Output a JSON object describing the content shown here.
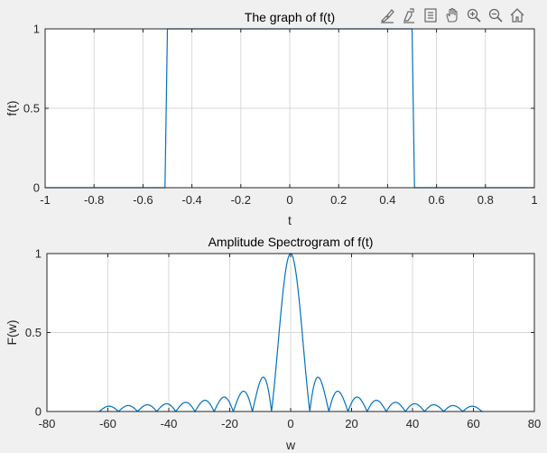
{
  "toolbar": {
    "icons": [
      "brush-icon",
      "data-tips-icon",
      "legend-icon",
      "pan-icon",
      "zoom-in-icon",
      "zoom-out-icon",
      "home-icon"
    ]
  },
  "colors": {
    "line": "#0072bd",
    "grid": "#d9d9d9",
    "axes_bg": "#ffffff",
    "figure_bg": "#f0f0f0"
  },
  "chart_data": [
    {
      "type": "line",
      "title": "The graph of f(t)",
      "xlabel": "t",
      "ylabel": "f(t)",
      "xlim": [
        -1,
        1
      ],
      "ylim": [
        0,
        1
      ],
      "grid": true,
      "x_ticks": [
        -1,
        -0.8,
        -0.6,
        -0.4,
        -0.2,
        0,
        0.2,
        0.4,
        0.6,
        0.8,
        1
      ],
      "x_tick_labels": [
        "-1",
        "-0.8",
        "-0.6",
        "-0.4",
        "-0.2",
        "0",
        "0.2",
        "0.4",
        "0.6",
        "0.8",
        "1"
      ],
      "y_ticks": [
        0,
        0.5,
        1
      ],
      "y_tick_labels": [
        "0",
        "0.5",
        "1"
      ],
      "series": [
        {
          "x": [
            -1,
            -0.51,
            -0.5,
            0.5,
            0.51,
            1
          ],
          "y": [
            0,
            0,
            1,
            1,
            0,
            0
          ]
        }
      ]
    },
    {
      "type": "line",
      "title": "Amplitude Spectrogram of f(t)",
      "xlabel": "w",
      "ylabel": "F(w)",
      "xlim": [
        -80,
        80
      ],
      "ylim": [
        0,
        1
      ],
      "grid": true,
      "x_ticks": [
        -80,
        -60,
        -40,
        -20,
        0,
        20,
        40,
        60,
        80
      ],
      "x_tick_labels": [
        "-80",
        "-60",
        "-40",
        "-20",
        "0",
        "20",
        "40",
        "60",
        "80"
      ],
      "y_ticks": [
        0,
        0.5,
        1
      ],
      "y_tick_labels": [
        "0",
        "0.5",
        "1"
      ],
      "series": [
        {
          "function": "|sinc|",
          "w_range": [
            -63,
            63
          ],
          "first_zero": 6.28
        }
      ]
    }
  ]
}
